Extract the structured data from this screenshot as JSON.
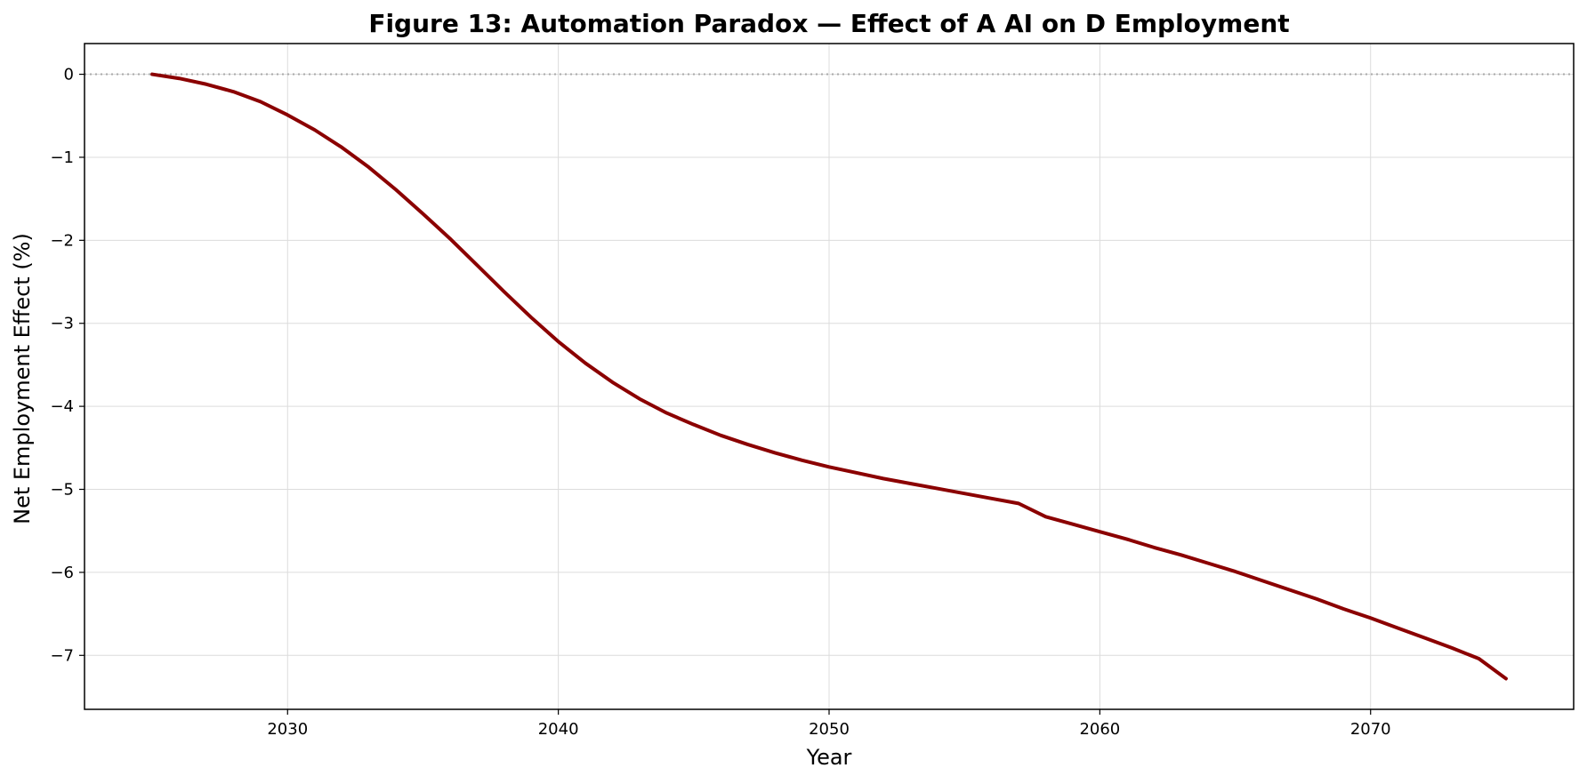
{
  "chart_data": {
    "type": "line",
    "title": "Figure 13: Automation Paradox — Effect of A AI on D Employment",
    "xlabel": "Year",
    "ylabel": "Net Employment Effect (%)",
    "xlim": [
      2022.5,
      2077.5
    ],
    "ylim": [
      -7.65,
      0.37
    ],
    "xticks": [
      2030,
      2040,
      2050,
      2060,
      2070
    ],
    "yticks": [
      0,
      -1,
      -2,
      -3,
      -4,
      -5,
      -6,
      -7
    ],
    "xtick_labels": [
      "2030",
      "2040",
      "2050",
      "2060",
      "2070"
    ],
    "ytick_labels": [
      "0",
      "−1",
      "−2",
      "−3",
      "−4",
      "−5",
      "−6",
      "−7"
    ],
    "grid": true,
    "reference_line": {
      "y": 0,
      "style": "dotted",
      "color": "#aaaaaa"
    },
    "series": [
      {
        "color": "#8b0000",
        "x": [
          2025,
          2026,
          2027,
          2028,
          2029,
          2030,
          2031,
          2032,
          2033,
          2034,
          2035,
          2036,
          2037,
          2038,
          2039,
          2040,
          2041,
          2042,
          2043,
          2044,
          2045,
          2046,
          2047,
          2048,
          2049,
          2050,
          2051,
          2052,
          2053,
          2054,
          2055,
          2056,
          2057,
          2058,
          2059,
          2060,
          2061,
          2062,
          2063,
          2064,
          2065,
          2066,
          2067,
          2068,
          2069,
          2070,
          2071,
          2072,
          2073,
          2074,
          2075
        ],
        "y": [
          0.0,
          -0.05,
          -0.12,
          -0.21,
          -0.33,
          -0.49,
          -0.67,
          -0.88,
          -1.12,
          -1.39,
          -1.68,
          -1.98,
          -2.3,
          -2.62,
          -2.93,
          -3.22,
          -3.48,
          -3.71,
          -3.91,
          -4.08,
          -4.22,
          -4.35,
          -4.46,
          -4.56,
          -4.65,
          -4.73,
          -4.8,
          -4.87,
          -4.93,
          -4.99,
          -5.05,
          -5.11,
          -5.17,
          -5.33,
          -5.42,
          -5.51,
          -5.6,
          -5.7,
          -5.79,
          -5.89,
          -5.99,
          -6.1,
          -6.21,
          -6.32,
          -6.44,
          -6.55,
          -6.67,
          -6.79,
          -6.91,
          -7.04,
          -7.28
        ]
      }
    ]
  }
}
